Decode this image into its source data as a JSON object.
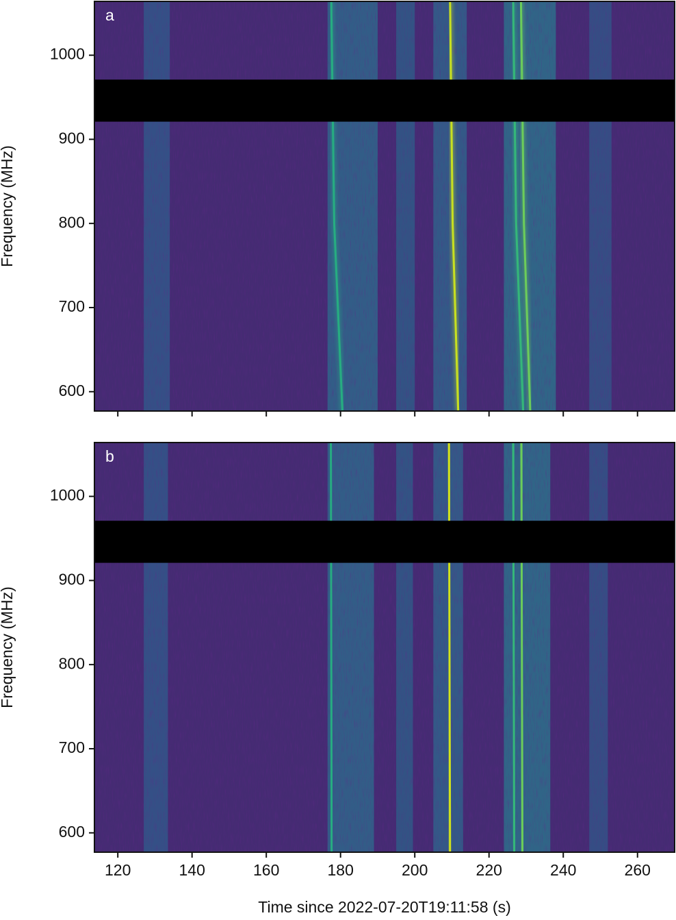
{
  "chart_data": [
    {
      "type": "spectrogram",
      "label": "a",
      "ylabel": "Frequency (MHz)",
      "xlim": [
        113.7,
        270
      ],
      "ylim": [
        577,
        1064
      ],
      "xticks": [
        120,
        140,
        160,
        180,
        200,
        220,
        240,
        260
      ],
      "show_xticklabels": false,
      "yticks": [
        600,
        700,
        800,
        900,
        1000
      ],
      "background": "#452b73",
      "mask": [
        921,
        971
      ],
      "mask_color": "#000000",
      "bands": [
        {
          "t": [
            127,
            134
          ],
          "color": "#2f5e8c"
        },
        {
          "t": [
            176.5,
            190
          ],
          "color": "#2c6f8e"
        },
        {
          "t": [
            195,
            200
          ],
          "color": "#2c6189"
        },
        {
          "t": [
            205,
            214
          ],
          "color": "#2d6a8e"
        },
        {
          "t": [
            224,
            238
          ],
          "color": "#2a7a8e"
        },
        {
          "t": [
            247,
            253
          ],
          "color": "#305a8a"
        }
      ],
      "tracks": [
        {
          "t": [
            177.5,
            178.3,
            180.5
          ],
          "f": [
            1064,
            800,
            577
          ],
          "color": "#27ad81"
        },
        {
          "t": [
            209.5,
            210.2,
            211.7
          ],
          "f": [
            1064,
            800,
            577
          ],
          "color": "#c8e020"
        },
        {
          "t": [
            226.5,
            227.3,
            229.2
          ],
          "f": [
            1064,
            800,
            577
          ],
          "color": "#35b779"
        },
        {
          "t": [
            228.6,
            229.4,
            231.1
          ],
          "f": [
            1064,
            800,
            577
          ],
          "color": "#6ccd5a"
        }
      ]
    },
    {
      "type": "spectrogram",
      "label": "b",
      "ylabel": "Frequency (MHz)",
      "xlabel": "Time since 2022-07-20T19:11:58 (s)",
      "xlim": [
        113.7,
        270
      ],
      "ylim": [
        577,
        1064
      ],
      "xticks": [
        120,
        140,
        160,
        180,
        200,
        220,
        240,
        260
      ],
      "show_xticklabels": true,
      "yticks": [
        600,
        700,
        800,
        900,
        1000
      ],
      "background": "#452b73",
      "mask": [
        921,
        971
      ],
      "mask_color": "#000000",
      "bands": [
        {
          "t": [
            127,
            133.5
          ],
          "color": "#2f5e8c"
        },
        {
          "t": [
            176.5,
            189
          ],
          "color": "#2c6f8e"
        },
        {
          "t": [
            195,
            199.5
          ],
          "color": "#2c6189"
        },
        {
          "t": [
            205,
            213
          ],
          "color": "#2d6a8e"
        },
        {
          "t": [
            224,
            236.5
          ],
          "color": "#2a7a8e"
        },
        {
          "t": [
            247,
            252
          ],
          "color": "#305a8a"
        }
      ],
      "tracks": [
        {
          "t": [
            177.4,
            177.6
          ],
          "f": [
            1064,
            577
          ],
          "color": "#27ad81"
        },
        {
          "t": [
            209.2,
            209.5
          ],
          "f": [
            1064,
            577
          ],
          "color": "#d2e21b"
        },
        {
          "t": [
            226.5,
            226.8
          ],
          "f": [
            1064,
            577
          ],
          "color": "#35b779"
        },
        {
          "t": [
            228.7,
            229.0
          ],
          "f": [
            1064,
            577
          ],
          "color": "#6ccd5a"
        }
      ]
    }
  ]
}
